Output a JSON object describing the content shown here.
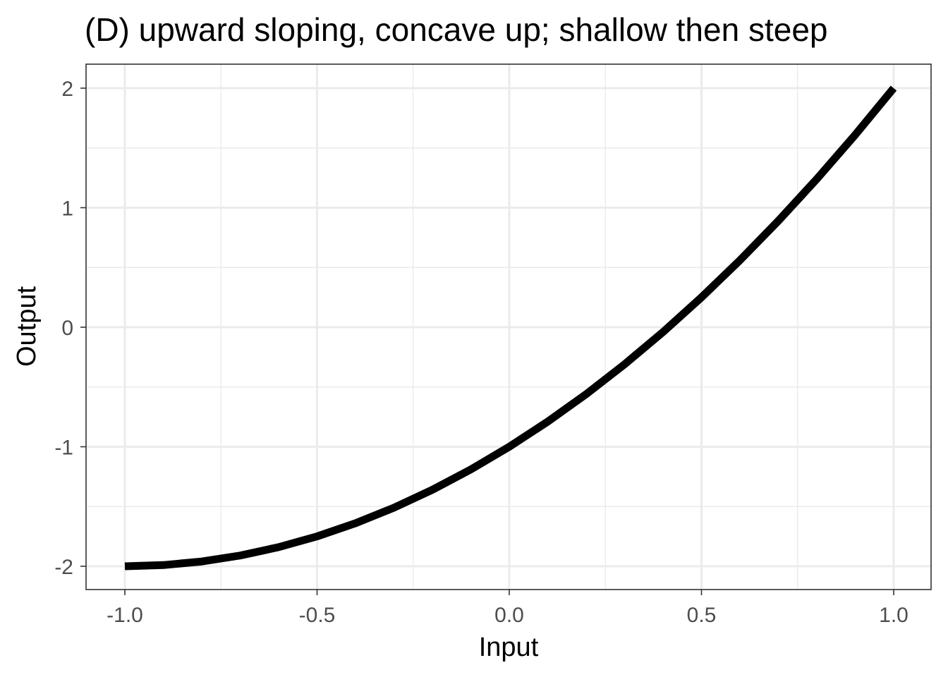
{
  "chart_data": {
    "type": "line",
    "title": "(D) upward sloping, concave up; shallow then steep",
    "xlabel": "Input",
    "ylabel": "Output",
    "xlim": [
      -1.0,
      1.0
    ],
    "ylim": [
      -2,
      2
    ],
    "x_ticks": [
      -1.0,
      -0.5,
      0.0,
      0.5,
      1.0
    ],
    "x_tick_labels": [
      "-1.0",
      "-0.5",
      "0.0",
      "0.5",
      "1.0"
    ],
    "y_ticks": [
      -2,
      -1,
      0,
      1,
      2
    ],
    "y_tick_labels": [
      "-2",
      "-1",
      "0",
      "1",
      "2"
    ],
    "grid": true,
    "series": [
      {
        "x": [
          -1.0,
          -0.9,
          -0.8,
          -0.7,
          -0.6,
          -0.5,
          -0.4,
          -0.3,
          -0.2,
          -0.1,
          0.0,
          0.1,
          0.2,
          0.3,
          0.4,
          0.5,
          0.6,
          0.7,
          0.8,
          0.9,
          1.0
        ],
        "y": [
          -2.0,
          -1.99,
          -1.96,
          -1.91,
          -1.84,
          -1.75,
          -1.64,
          -1.51,
          -1.36,
          -1.19,
          -1.0,
          -0.79,
          -0.56,
          -0.31,
          -0.04,
          0.25,
          0.56,
          0.89,
          1.24,
          1.61,
          2.0
        ],
        "color": "#000000"
      }
    ]
  }
}
